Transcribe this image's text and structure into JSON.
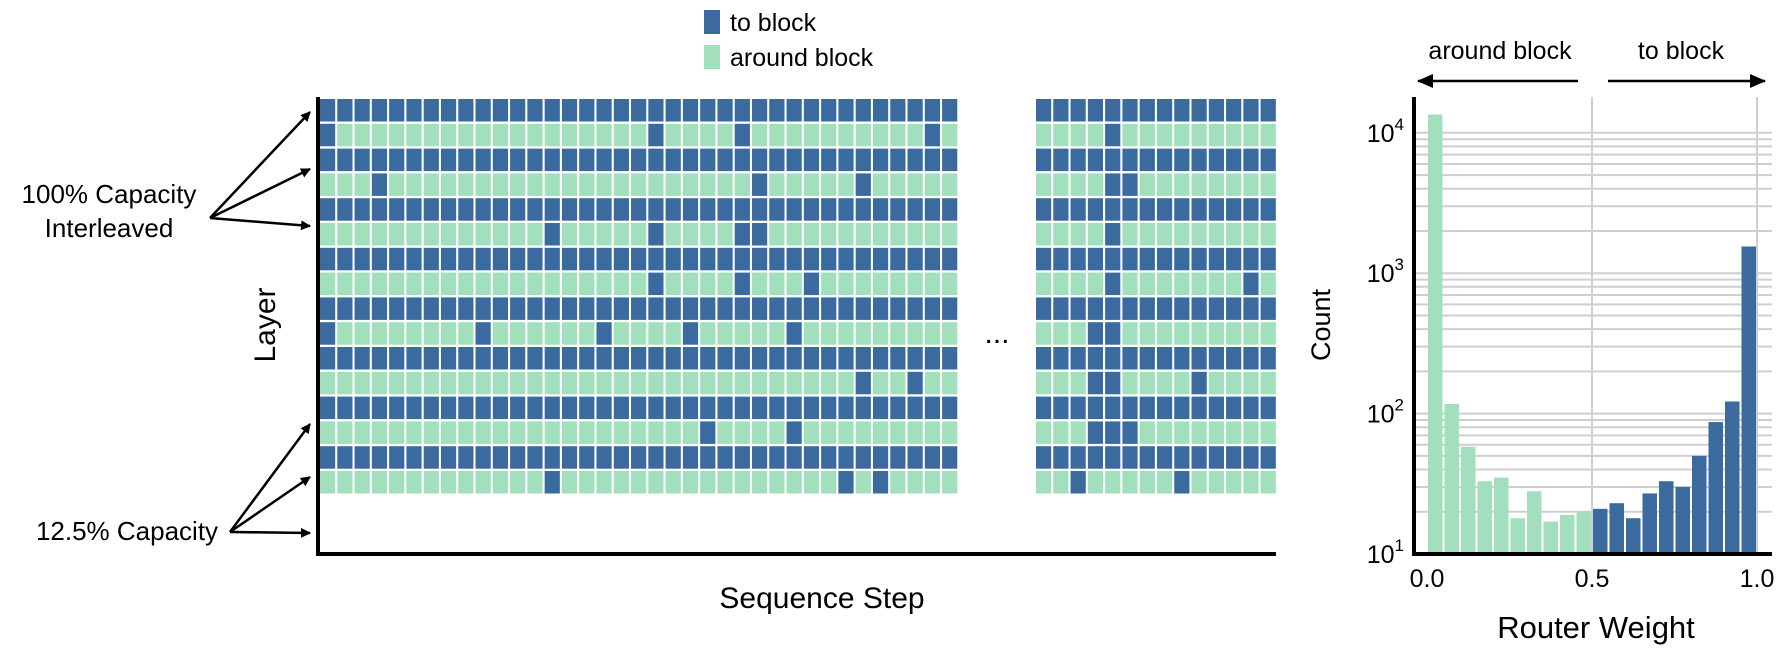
{
  "legend": {
    "items": [
      {
        "label": "to block",
        "color": "#3a6a9e"
      },
      {
        "label": "around block",
        "color": "#a2dfbd"
      }
    ]
  },
  "grid_panel": {
    "ylabel": "Layer",
    "xlabel": "Sequence Step",
    "ellipsis": "...",
    "annotations": [
      {
        "text": [
          "100% Capacity",
          "Interleaved"
        ]
      },
      {
        "text": [
          "12.5% Capacity"
        ]
      }
    ]
  },
  "chart_data": [
    {
      "type": "heatmap",
      "xlabel": "Sequence Step",
      "ylabel": "Layer",
      "legend": [
        "to block",
        "around block"
      ],
      "rows": 16,
      "left_columns": 37,
      "right_columns": 14,
      "full_capacity_rows": [
        0,
        2,
        4,
        6,
        8,
        10,
        12,
        14
      ],
      "left_to_block_cells": {
        "1": [
          0,
          19,
          24,
          35
        ],
        "3": [
          3,
          25,
          31
        ],
        "5": [
          13,
          19,
          24,
          25
        ],
        "7": [
          19,
          24,
          28
        ],
        "9": [
          0,
          9,
          16,
          21,
          27
        ],
        "11": [
          31,
          34
        ],
        "13": [
          22,
          27
        ],
        "15": [
          13,
          30,
          32
        ]
      },
      "right_to_block_cells": {
        "1": [
          4
        ],
        "3": [
          4,
          5
        ],
        "5": [
          4
        ],
        "7": [
          4,
          12
        ],
        "9": [
          3,
          4
        ],
        "11": [
          3,
          4,
          9
        ],
        "13": [
          3,
          4,
          5
        ],
        "15": [
          2,
          8
        ]
      }
    },
    {
      "type": "bar",
      "xlabel": "Router Weight",
      "ylabel": "Count",
      "yscale": "log",
      "xlim": [
        0.0,
        1.0
      ],
      "ylim": [
        10,
        18000
      ],
      "xticks": [
        "0.0",
        "0.5",
        "1.0"
      ],
      "yticks": [
        {
          "base": "10",
          "exp": "1"
        },
        {
          "base": "10",
          "exp": "2"
        },
        {
          "base": "10",
          "exp": "3"
        },
        {
          "base": "10",
          "exp": "4"
        }
      ],
      "region_labels": {
        "left": "around block",
        "right": "to block"
      },
      "bin_width": 0.05,
      "bins": [
        0.0,
        0.05,
        0.1,
        0.15,
        0.2,
        0.25,
        0.3,
        0.35,
        0.4,
        0.45,
        0.5,
        0.55,
        0.6,
        0.65,
        0.7,
        0.75,
        0.8,
        0.85,
        0.9,
        0.95
      ],
      "series": [
        {
          "name": "around block",
          "values": [
            13500,
            117,
            58,
            33,
            35,
            18,
            28,
            17,
            19,
            20,
            null,
            null,
            null,
            null,
            null,
            null,
            null,
            null,
            null,
            null
          ]
        },
        {
          "name": "to block",
          "values": [
            null,
            null,
            null,
            null,
            null,
            null,
            null,
            null,
            null,
            null,
            21,
            23,
            18,
            27,
            33,
            30,
            50,
            87,
            122,
            1550
          ]
        }
      ]
    }
  ]
}
